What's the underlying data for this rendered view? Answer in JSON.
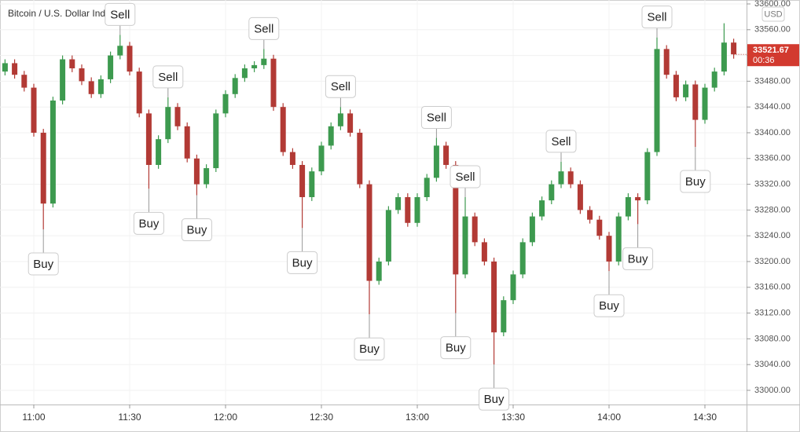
{
  "chart_data": {
    "type": "candlestick",
    "title": "Bitcoin / U.S. Dollar Index",
    "currency": "USD",
    "countdown": "00:36",
    "up_color": "#3d9a4f",
    "down_color": "#b23a35",
    "x": [
      "10:51",
      "10:54",
      "10:57",
      "11:00",
      "11:03",
      "11:06",
      "11:09",
      "11:12",
      "11:15",
      "11:18",
      "11:21",
      "11:24",
      "11:27",
      "11:30",
      "11:33",
      "11:36",
      "11:39",
      "11:42",
      "11:45",
      "11:48",
      "11:51",
      "11:54",
      "11:57",
      "12:00",
      "12:03",
      "12:06",
      "12:09",
      "12:12",
      "12:15",
      "12:18",
      "12:21",
      "12:24",
      "12:27",
      "12:30",
      "12:33",
      "12:36",
      "12:39",
      "12:42",
      "12:45",
      "12:48",
      "12:51",
      "12:54",
      "12:57",
      "13:00",
      "13:03",
      "13:06",
      "13:09",
      "13:12",
      "13:15",
      "13:18",
      "13:21",
      "13:24",
      "13:27",
      "13:30",
      "13:33",
      "13:36",
      "13:39",
      "13:42",
      "13:45",
      "13:48",
      "13:51",
      "13:54",
      "13:57",
      "14:00",
      "14:03",
      "14:06",
      "14:09",
      "14:12",
      "14:15",
      "14:18",
      "14:21",
      "14:24",
      "14:27",
      "14:30",
      "14:33",
      "14:36",
      "14:39"
    ],
    "open": [
      33495,
      33508,
      33490,
      33470,
      33400,
      33290,
      33450,
      33514,
      33500,
      33480,
      33460,
      33483,
      33520,
      33535,
      33495,
      33430,
      33350,
      33390,
      33440,
      33410,
      33360,
      33320,
      33345,
      33430,
      33460,
      33485,
      33500,
      33505,
      33515,
      33440,
      33370,
      33350,
      33300,
      33340,
      33380,
      33410,
      33430,
      33400,
      33320,
      33170,
      33200,
      33280,
      33300,
      33260,
      33300,
      33330,
      33380,
      33350,
      33180,
      33270,
      33230,
      33200,
      33090,
      33140,
      33180,
      33230,
      33270,
      33295,
      33320,
      33340,
      33320,
      33280,
      33265,
      33240,
      33200,
      33270,
      33300,
      33295,
      33370,
      33530,
      33490,
      33455,
      33475,
      33420,
      33470,
      33495,
      33540
    ],
    "high": [
      33514,
      33514,
      33496,
      33476,
      33406,
      33456,
      33520,
      33520,
      33506,
      33486,
      33489,
      33526,
      33552,
      33541,
      33501,
      33436,
      33396,
      33455,
      33446,
      33416,
      33366,
      33351,
      33436,
      33466,
      33491,
      33506,
      33511,
      33530,
      33521,
      33446,
      33376,
      33356,
      33346,
      33386,
      33416,
      33440,
      33436,
      33406,
      33326,
      33206,
      33286,
      33306,
      33306,
      33306,
      33336,
      33392,
      33386,
      33356,
      33300,
      33276,
      33236,
      33206,
      33146,
      33186,
      33236,
      33276,
      33301,
      33326,
      33355,
      33346,
      33326,
      33286,
      33271,
      33246,
      33276,
      33306,
      33306,
      33376,
      33548,
      33536,
      33496,
      33481,
      33481,
      33476,
      33501,
      33570,
      33546
    ],
    "low": [
      33489,
      33484,
      33464,
      33394,
      33250,
      33284,
      33444,
      33494,
      33474,
      33454,
      33454,
      33477,
      33514,
      33489,
      33424,
      33313,
      33344,
      33384,
      33404,
      33354,
      33303,
      33314,
      33339,
      33424,
      33454,
      33479,
      33494,
      33499,
      33434,
      33364,
      33344,
      33252,
      33294,
      33334,
      33374,
      33404,
      33394,
      33314,
      33118,
      33164,
      33194,
      33274,
      33254,
      33254,
      33294,
      33324,
      33344,
      33120,
      33174,
      33224,
      33194,
      33040,
      33084,
      33134,
      33174,
      33224,
      33264,
      33289,
      33314,
      33314,
      33274,
      33259,
      33234,
      33185,
      33194,
      33264,
      33258,
      33289,
      33364,
      33484,
      33449,
      33449,
      33378,
      33414,
      33464,
      33489,
      33515
    ],
    "close": [
      33508,
      33490,
      33470,
      33400,
      33290,
      33450,
      33514,
      33500,
      33480,
      33460,
      33483,
      33520,
      33535,
      33495,
      33430,
      33350,
      33390,
      33440,
      33410,
      33360,
      33320,
      33345,
      33430,
      33460,
      33485,
      33500,
      33505,
      33515,
      33440,
      33370,
      33350,
      33300,
      33340,
      33380,
      33410,
      33430,
      33400,
      33320,
      33170,
      33200,
      33280,
      33300,
      33260,
      33300,
      33330,
      33380,
      33350,
      33180,
      33270,
      33230,
      33200,
      33090,
      33140,
      33180,
      33230,
      33270,
      33295,
      33320,
      33340,
      33320,
      33280,
      33265,
      33240,
      33200,
      33270,
      33300,
      33295,
      33370,
      33530,
      33490,
      33455,
      33475,
      33420,
      33470,
      33495,
      33540,
      33521.67
    ],
    "xticks": [
      "11:00",
      "11:30",
      "12:00",
      "12:30",
      "13:00",
      "13:30",
      "14:00",
      "14:30"
    ],
    "ylim": [
      32978,
      33600
    ],
    "yticks": [
      {
        "value": 33000,
        "label": "33000.00"
      },
      {
        "value": 33040,
        "label": "33040.00"
      },
      {
        "value": 33080,
        "label": "33080.00"
      },
      {
        "value": 33120,
        "label": "33120.00"
      },
      {
        "value": 33160,
        "label": "33160.00"
      },
      {
        "value": 33200,
        "label": "33200.00"
      },
      {
        "value": 33240,
        "label": "33240.00"
      },
      {
        "value": 33280,
        "label": "33280.00"
      },
      {
        "value": 33320,
        "label": "33320.00"
      },
      {
        "value": 33360,
        "label": "33360.00"
      },
      {
        "value": 33400,
        "label": "33400.00"
      },
      {
        "value": 33440,
        "label": "33440.00"
      },
      {
        "value": 33480,
        "label": "33480.00"
      },
      {
        "value": 33520,
        "label": "33520.00"
      },
      {
        "value": 33560,
        "label": "33560.00"
      },
      {
        "value": 33600,
        "label": "33600.00"
      }
    ],
    "annotations": [
      {
        "text": "Buy",
        "x": "11:03"
      },
      {
        "text": "Sell",
        "x": "11:27"
      },
      {
        "text": "Buy",
        "x": "11:36"
      },
      {
        "text": "Sell",
        "x": "11:42"
      },
      {
        "text": "Buy",
        "x": "11:51"
      },
      {
        "text": "Sell",
        "x": "12:12"
      },
      {
        "text": "Buy",
        "x": "12:24"
      },
      {
        "text": "Sell",
        "x": "12:36"
      },
      {
        "text": "Buy",
        "x": "12:45"
      },
      {
        "text": "Sell",
        "x": "13:06"
      },
      {
        "text": "Buy",
        "x": "13:12"
      },
      {
        "text": "Sell",
        "x": "13:15"
      },
      {
        "text": "Buy",
        "x": "13:24"
      },
      {
        "text": "Sell",
        "x": "13:45"
      },
      {
        "text": "Buy",
        "x": "14:00"
      },
      {
        "text": "Buy",
        "x": "14:09"
      },
      {
        "text": "Sell",
        "x": "14:15"
      },
      {
        "text": "Buy",
        "x": "14:27"
      }
    ]
  }
}
